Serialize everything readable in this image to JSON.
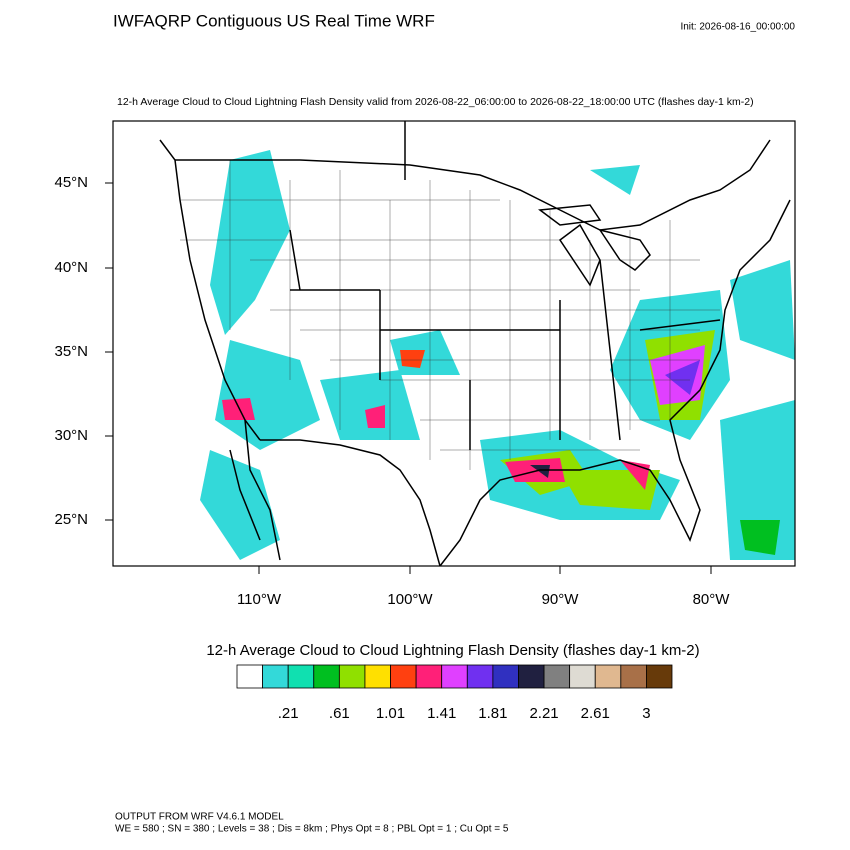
{
  "header": {
    "title": "IWFAQRP Contiguous US Real Time WRF",
    "init": "Init: 2026-08-16_00:00:00"
  },
  "map": {
    "subtitle": "12-h Average Cloud to Cloud Lightning Flash Density valid from 2026-08-22_06:00:00 to 2026-08-22_18:00:00 UTC   (flashes day-1 km-2)",
    "lat_labels": [
      "45°N",
      "40°N",
      "35°N",
      "30°N",
      "25°N"
    ],
    "lon_labels": [
      "110°W",
      "100°W",
      "90°W",
      "80°W"
    ]
  },
  "colorbar": {
    "title": "12-h Average Cloud to Cloud Lightning Flash Density  (flashes day-1 km-2)",
    "colors": [
      "#ffffff",
      "#33d9d9",
      "#10e0b0",
      "#00bf20",
      "#90e000",
      "#ffe000",
      "#ff4010",
      "#ff2078",
      "#e040ff",
      "#7030f0",
      "#3030c0",
      "#202040",
      "#808080",
      "#dedbd3",
      "#e0b890",
      "#a87048",
      "#673a0a"
    ],
    "labels": [
      ".21",
      ".61",
      "1.01",
      "1.41",
      "1.81",
      "2.21",
      "2.61",
      "3"
    ]
  },
  "footer": {
    "lines": [
      "OUTPUT FROM WRF V4.6.1 MODEL",
      "WE = 580 ; SN = 380 ; Levels = 38 ; Dis = 8km ; Phys Opt = 8 ; PBL Opt = 1 ; Cu Opt = 5"
    ]
  }
}
